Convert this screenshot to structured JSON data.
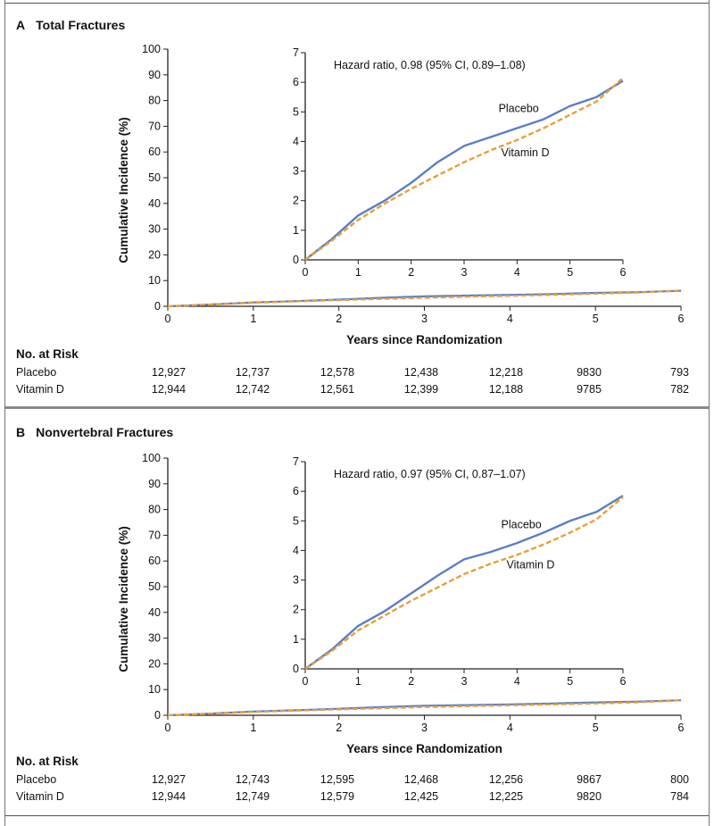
{
  "panels": [
    {
      "letter": "A",
      "title": "Total Fractures",
      "chart_data": {
        "type": "line",
        "ylabel": "Cumulative Incidence (%)",
        "xlabel": "Years since Randomization",
        "xlim": [
          0,
          6
        ],
        "ylim": [
          0,
          100
        ],
        "x_ticks": [
          "0",
          "1",
          "2",
          "3",
          "4",
          "5",
          "6"
        ],
        "y_ticks": [
          "0",
          "10",
          "20",
          "30",
          "40",
          "50",
          "60",
          "70",
          "80",
          "90",
          "100"
        ],
        "series": [
          {
            "name": "Placebo",
            "color": "#5b7fc6",
            "style": "solid",
            "x": [
              0,
              0.5,
              1,
              1.5,
              2,
              2.5,
              3,
              3.5,
              4,
              4.5,
              5,
              5.5,
              6
            ],
            "y": [
              0,
              0.7,
              1.5,
              2.0,
              2.6,
              3.3,
              3.85,
              4.15,
              4.45,
              4.75,
              5.2,
              5.5,
              6.05
            ]
          },
          {
            "name": "Vitamin D",
            "color": "#e8a038",
            "style": "dashed",
            "x": [
              0,
              0.5,
              1,
              1.5,
              2,
              2.5,
              3,
              3.5,
              4,
              4.5,
              5,
              5.5,
              6
            ],
            "y": [
              0,
              0.65,
              1.35,
              1.9,
              2.4,
              2.85,
              3.3,
              3.7,
              4.05,
              4.45,
              4.9,
              5.35,
              6.15
            ]
          }
        ],
        "inset": {
          "annotation": "Hazard ratio, 0.98 (95% CI, 0.89–1.08)",
          "xlim": [
            0,
            6
          ],
          "ylim": [
            0,
            7
          ],
          "x_ticks": [
            "0",
            "1",
            "2",
            "3",
            "4",
            "5",
            "6"
          ],
          "y_ticks": [
            "0",
            "1",
            "2",
            "3",
            "4",
            "5",
            "6",
            "7"
          ],
          "series_labels": [
            {
              "text": "Placebo",
              "x": 3.65,
              "y": 5.0
            },
            {
              "text": "Vitamin D",
              "x": 3.7,
              "y": 3.5
            }
          ]
        }
      },
      "risk": {
        "heading": "No. at Risk",
        "rows": [
          {
            "label": "Placebo",
            "values": [
              "12,927",
              "12,737",
              "12,578",
              "12,438",
              "12,218",
              "9830",
              "793"
            ]
          },
          {
            "label": "Vitamin D",
            "values": [
              "12,944",
              "12,742",
              "12,561",
              "12,399",
              "12,188",
              "9785",
              "782"
            ]
          }
        ]
      }
    },
    {
      "letter": "B",
      "title": "Nonvertebral Fractures",
      "chart_data": {
        "type": "line",
        "ylabel": "Cumulative Incidence (%)",
        "xlabel": "Years since Randomization",
        "xlim": [
          0,
          6
        ],
        "ylim": [
          0,
          100
        ],
        "x_ticks": [
          "0",
          "1",
          "2",
          "3",
          "4",
          "5",
          "6"
        ],
        "y_ticks": [
          "0",
          "10",
          "20",
          "30",
          "40",
          "50",
          "60",
          "70",
          "80",
          "90",
          "100"
        ],
        "series": [
          {
            "name": "Placebo",
            "color": "#5b7fc6",
            "style": "solid",
            "x": [
              0,
              0.5,
              1,
              1.5,
              2,
              2.5,
              3,
              3.5,
              4,
              4.5,
              5,
              5.5,
              6
            ],
            "y": [
              0,
              0.65,
              1.45,
              1.95,
              2.55,
              3.15,
              3.7,
              3.95,
              4.25,
              4.6,
              5.0,
              5.3,
              5.85
            ]
          },
          {
            "name": "Vitamin D",
            "color": "#e8a038",
            "style": "dashed",
            "x": [
              0,
              0.5,
              1,
              1.5,
              2,
              2.5,
              3,
              3.5,
              4,
              4.5,
              5,
              5.5,
              6
            ],
            "y": [
              0,
              0.6,
              1.3,
              1.8,
              2.3,
              2.75,
              3.2,
              3.55,
              3.85,
              4.2,
              4.6,
              5.05,
              5.8
            ]
          }
        ],
        "inset": {
          "annotation": "Hazard ratio, 0.97 (95% CI, 0.87–1.07)",
          "xlim": [
            0,
            6
          ],
          "ylim": [
            0,
            7
          ],
          "x_ticks": [
            "0",
            "1",
            "2",
            "3",
            "4",
            "5",
            "6"
          ],
          "y_ticks": [
            "0",
            "1",
            "2",
            "3",
            "4",
            "5",
            "6",
            "7"
          ],
          "series_labels": [
            {
              "text": "Placebo",
              "x": 3.7,
              "y": 4.75
            },
            {
              "text": "Vitamin D",
              "x": 3.8,
              "y": 3.4
            }
          ]
        }
      },
      "risk": {
        "heading": "No. at Risk",
        "rows": [
          {
            "label": "Placebo",
            "values": [
              "12,927",
              "12,743",
              "12,595",
              "12,468",
              "12,256",
              "9867",
              "800"
            ]
          },
          {
            "label": "Vitamin D",
            "values": [
              "12,944",
              "12,749",
              "12,579",
              "12,425",
              "12,225",
              "9820",
              "784"
            ]
          }
        ]
      }
    }
  ]
}
